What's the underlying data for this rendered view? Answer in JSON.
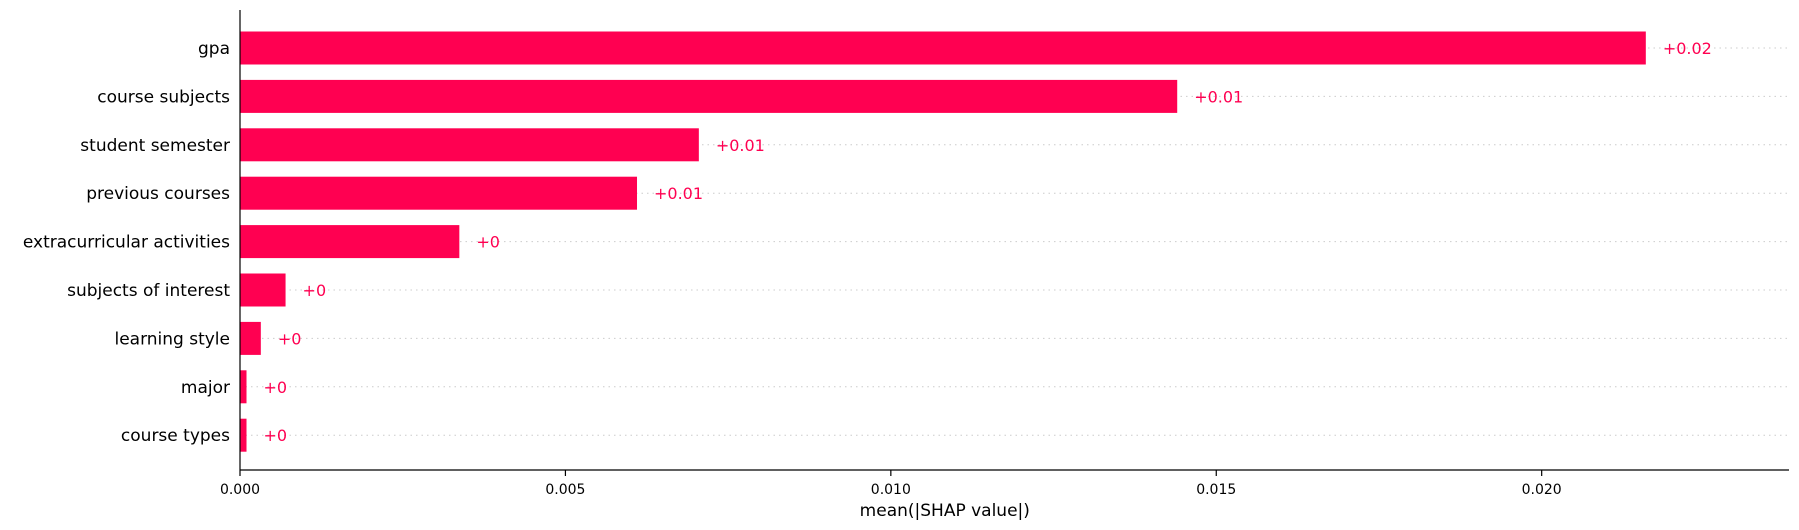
{
  "chart_data": {
    "type": "bar",
    "orientation": "horizontal",
    "categories": [
      "gpa",
      "course subjects",
      "student semester",
      "previous courses",
      "extracurricular activities",
      "subjects of interest",
      "learning style",
      "major",
      "course types"
    ],
    "values": [
      0.0216,
      0.0144,
      0.00705,
      0.0061,
      0.00337,
      0.0007,
      0.00032,
      0.0001,
      0.0001
    ],
    "value_labels": [
      "+0.02",
      "+0.01",
      "+0.01",
      "+0.01",
      "+0",
      "+0",
      "+0",
      "+0",
      "+0"
    ],
    "xlabel": "mean(|SHAP value|)",
    "xlim": [
      0,
      0.0238
    ],
    "xticks": [
      0.0,
      0.005,
      0.01,
      0.015,
      0.02
    ],
    "xtick_labels": [
      "0.000",
      "0.005",
      "0.010",
      "0.015",
      "0.020"
    ],
    "grid": "dotted horizontal guides per row",
    "bar_color": "#ff0051"
  }
}
